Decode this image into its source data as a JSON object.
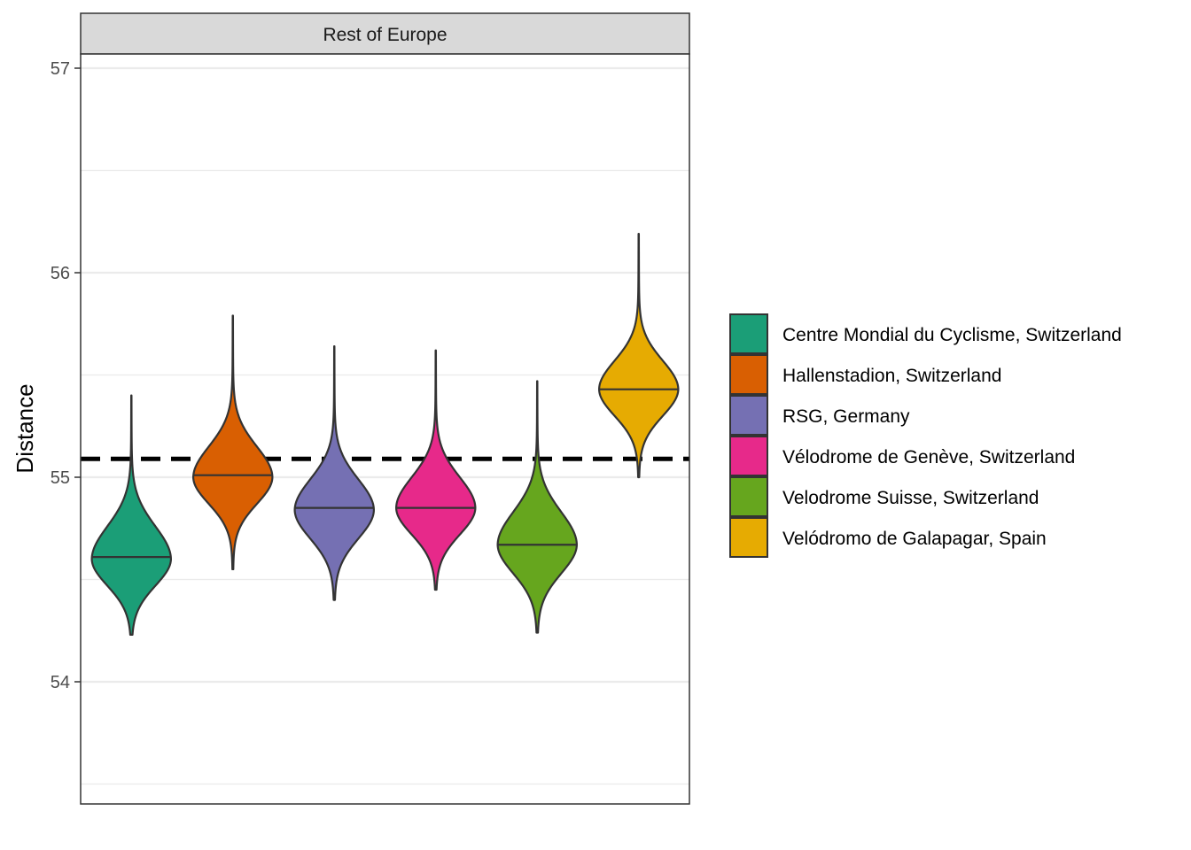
{
  "chart_data": {
    "type": "violin",
    "facet": "Rest of Europe",
    "ylabel": "Distance",
    "xlabel": "",
    "ylim": [
      53.4,
      57.05
    ],
    "yticks": [
      54,
      55,
      56,
      57
    ],
    "ytick_labels": [
      "54",
      "55",
      "56",
      "57"
    ],
    "grid": true,
    "reference_line": {
      "y": 55.09,
      "style": "dashed"
    },
    "legend_position": "right",
    "series": [
      {
        "name": "Centre Mondial du Cyclisme, Switzerland",
        "color": "#1b9e77",
        "min": 54.23,
        "max": 55.4,
        "median": 54.61,
        "peak": 54.6,
        "spread_low": 0.13,
        "spread_high": 0.16
      },
      {
        "name": "Hallenstadion, Switzerland",
        "color": "#d95f02",
        "min": 54.55,
        "max": 55.79,
        "median": 55.01,
        "peak": 55.0,
        "spread_low": 0.13,
        "spread_high": 0.15
      },
      {
        "name": "RSG, Germany",
        "color": "#7570b3",
        "min": 54.4,
        "max": 55.64,
        "median": 54.85,
        "peak": 54.84,
        "spread_low": 0.14,
        "spread_high": 0.15
      },
      {
        "name": "Vélodrome de Genève, Switzerland",
        "color": "#e7298a",
        "min": 54.45,
        "max": 55.62,
        "median": 54.85,
        "peak": 54.85,
        "spread_low": 0.13,
        "spread_high": 0.15
      },
      {
        "name": "Velodrome Suisse, Switzerland",
        "color": "#66a61e",
        "min": 54.24,
        "max": 55.47,
        "median": 54.67,
        "peak": 54.67,
        "spread_low": 0.14,
        "spread_high": 0.16
      },
      {
        "name": "Velódromo de Galapagar, Spain",
        "color": "#e6ab02",
        "min": 55.0,
        "max": 56.19,
        "median": 55.43,
        "peak": 55.43,
        "spread_low": 0.13,
        "spread_high": 0.14
      }
    ]
  }
}
